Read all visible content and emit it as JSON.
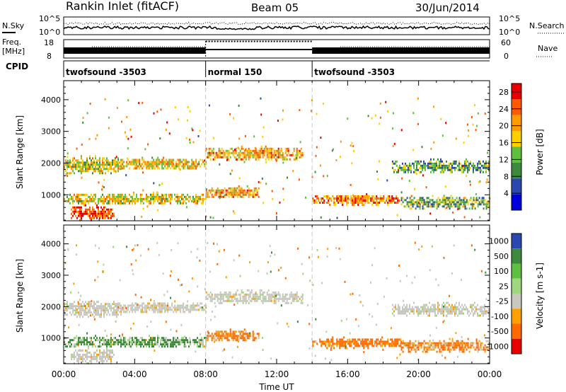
{
  "header": {
    "station": "Rankin Inlet (fitACF)",
    "beam": "Beam 05",
    "date": "30/Jun/2014"
  },
  "status": {
    "nsky_label": "N.Sky",
    "nsearch_label": "N.Search",
    "freq_label_line1": "Freq.",
    "freq_label_line2": "[MHz]",
    "nave_label": "Nave",
    "cpid_label": "CPID",
    "noise_ticks": [
      "10^5",
      "10^0"
    ],
    "freq_ticks": [
      "18",
      "8"
    ],
    "nave_ticks": [
      "60",
      "0"
    ],
    "cpid_segments": [
      {
        "name": "twofsound -3503",
        "start_h": 0,
        "end_h": 8
      },
      {
        "name": "normal 150",
        "start_h": 8,
        "end_h": 14
      },
      {
        "name": "twofsound -3503",
        "start_h": 14,
        "end_h": 24
      }
    ]
  },
  "chart_data": [
    {
      "type": "heatmap",
      "title": "",
      "xlabel": "Time UT",
      "ylabel": "Slant Range [km]",
      "xlim": [
        0,
        24
      ],
      "ylim": [
        180,
        4600
      ],
      "x_ticks": [
        "00:00",
        "04:00",
        "08:00",
        "12:00",
        "16:00",
        "20:00",
        "00:00"
      ],
      "y_ticks": [
        1000,
        2000,
        3000,
        4000
      ],
      "colorbar_label": "Power [dB]",
      "colorbar_ticks": [
        4,
        8,
        12,
        16,
        20,
        24,
        28
      ],
      "colorbar_range": [
        0,
        30
      ],
      "colors": [
        "#0000dd",
        "#2b48b0",
        "#3d8a3c",
        "#5fbf3f",
        "#ffd000",
        "#ff9a00",
        "#ff5a00",
        "#e80000"
      ],
      "regions": [
        {
          "x": [
            0.0,
            3.2
          ],
          "y": [
            1650,
            2250
          ],
          "value": 16
        },
        {
          "x": [
            2.8,
            8.0
          ],
          "y": [
            1800,
            2200
          ],
          "value": 18
        },
        {
          "x": [
            8.0,
            13.5
          ],
          "y": [
            2100,
            2550
          ],
          "value": 20
        },
        {
          "x": [
            0.0,
            8.0
          ],
          "y": [
            700,
            1100
          ],
          "value": 17
        },
        {
          "x": [
            0.4,
            2.8
          ],
          "y": [
            200,
            700
          ],
          "value": 26
        },
        {
          "x": [
            8.0,
            11.0
          ],
          "y": [
            900,
            1300
          ],
          "value": 20
        },
        {
          "x": [
            14.0,
            19.0
          ],
          "y": [
            700,
            1050
          ],
          "value": 22
        },
        {
          "x": [
            19.0,
            24.0
          ],
          "y": [
            550,
            1000
          ],
          "value": 12
        },
        {
          "x": [
            18.5,
            24.0
          ],
          "y": [
            1700,
            2150
          ],
          "value": 11
        }
      ]
    },
    {
      "type": "heatmap",
      "title": "",
      "xlabel": "Time UT",
      "ylabel": "Slant Range [km]",
      "xlim": [
        0,
        24
      ],
      "ylim": [
        180,
        4600
      ],
      "x_ticks": [
        "00:00",
        "04:00",
        "08:00",
        "12:00",
        "16:00",
        "20:00",
        "00:00"
      ],
      "y_ticks": [
        1000,
        2000,
        3000,
        4000
      ],
      "colorbar_label": "Velocity [m s-1]",
      "colorbar_ticks": [
        1000,
        500,
        100,
        25,
        -25,
        -100,
        -500,
        -1000
      ],
      "colors": [
        "#2b48b0",
        "#3d8a3c",
        "#5fbf3f",
        "#9fd77f",
        "#c8c8c0",
        "#ffa000",
        "#ff6a00",
        "#e80000"
      ],
      "regions": [
        {
          "x": [
            0.0,
            3.2
          ],
          "y": [
            1650,
            2250
          ],
          "value": 0
        },
        {
          "x": [
            2.8,
            8.0
          ],
          "y": [
            1800,
            2200
          ],
          "value": 0
        },
        {
          "x": [
            8.0,
            13.5
          ],
          "y": [
            2100,
            2550
          ],
          "value": 0
        },
        {
          "x": [
            0.0,
            8.0
          ],
          "y": [
            700,
            1100
          ],
          "value": 120
        },
        {
          "x": [
            0.4,
            2.8
          ],
          "y": [
            200,
            700
          ],
          "value": 0
        },
        {
          "x": [
            8.0,
            11.0
          ],
          "y": [
            900,
            1300
          ],
          "value": -150
        },
        {
          "x": [
            14.0,
            19.0
          ],
          "y": [
            700,
            1050
          ],
          "value": -200
        },
        {
          "x": [
            19.0,
            24.0
          ],
          "y": [
            550,
            1000
          ],
          "value": -120
        },
        {
          "x": [
            18.5,
            24.0
          ],
          "y": [
            1700,
            2150
          ],
          "value": 0
        }
      ]
    }
  ]
}
